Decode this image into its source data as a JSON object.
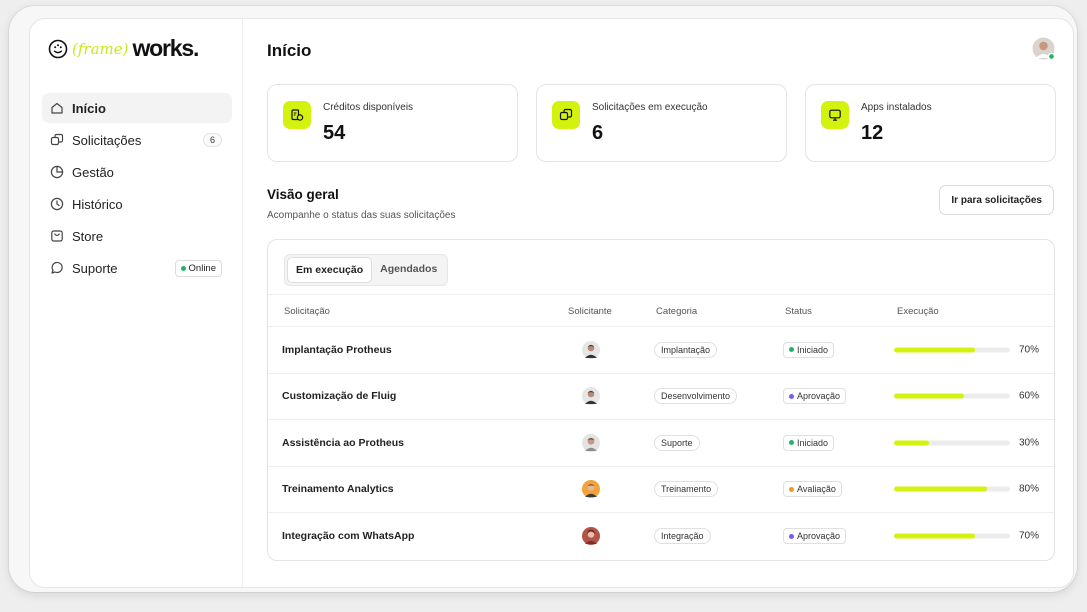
{
  "brand": {
    "frame": "(frame)",
    "works": "works."
  },
  "sidebar": {
    "items": [
      {
        "label": "Início",
        "icon": "home-icon",
        "active": true
      },
      {
        "label": "Solicitações",
        "icon": "requests-icon",
        "badge": "6"
      },
      {
        "label": "Gestão",
        "icon": "pie-chart-icon"
      },
      {
        "label": "Histórico",
        "icon": "history-icon"
      },
      {
        "label": "Store",
        "icon": "store-icon"
      },
      {
        "label": "Suporte",
        "icon": "chat-icon",
        "status": "Online"
      }
    ]
  },
  "header": {
    "title": "Início"
  },
  "stats": [
    {
      "label": "Créditos disponíveis",
      "value": "54",
      "icon": "credits-icon"
    },
    {
      "label": "Solicitações em execução",
      "value": "6",
      "icon": "requests-icon"
    },
    {
      "label": "Apps instalados",
      "value": "12",
      "icon": "monitor-icon"
    }
  ],
  "overview": {
    "title": "Visão geral",
    "subtitle": "Acompanhe o status das suas solicitações",
    "button": "Ir para solicitações"
  },
  "tabs": [
    "Em execução",
    "Agendados"
  ],
  "table": {
    "columns": [
      "Solicitação",
      "Solicitante",
      "Categoria",
      "Status",
      "Execução"
    ],
    "rows": [
      {
        "name": "Implantação Protheus",
        "category": "Implantação",
        "status": "Iniciado",
        "status_color": "#22b566",
        "progress": 70,
        "progress_label": "70%"
      },
      {
        "name": "Customização de Fluig",
        "category": "Desenvolvimento",
        "status": "Aprovação",
        "status_color": "#7b5cf0",
        "progress": 60,
        "progress_label": "60%"
      },
      {
        "name": "Assistência ao Protheus",
        "category": "Suporte",
        "status": "Iniciado",
        "status_color": "#22b566",
        "progress": 30,
        "progress_label": "30%"
      },
      {
        "name": "Treinamento Analytics",
        "category": "Treinamento",
        "status": "Avaliação",
        "status_color": "#f29a1a",
        "progress": 80,
        "progress_label": "80%"
      },
      {
        "name": "Integração com WhatsApp",
        "category": "Integração",
        "status": "Aprovação",
        "status_color": "#7b5cf0",
        "progress": 70,
        "progress_label": "70%"
      }
    ]
  },
  "colors": {
    "accent": "#d3f20e",
    "online": "#22b566"
  }
}
